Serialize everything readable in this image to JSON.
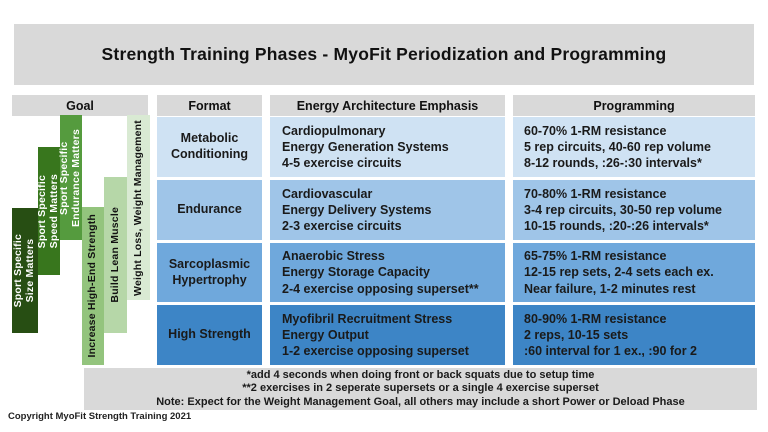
{
  "title": "Strength Training Phases - MyoFit Periodization and Programming",
  "columns": {
    "goal": "Goal",
    "format": "Format",
    "energy": "Energy Architecture Emphasis",
    "programming": "Programming"
  },
  "goals": [
    {
      "label": "Sport Specific\nSize Matters",
      "color": "#274e13",
      "text_color": "#ffffff"
    },
    {
      "label": "Sport Specific\nSpeed Matters",
      "color": "#38761d",
      "text_color": "#ffffff"
    },
    {
      "label": "Sport Specific\nEndurance Matters",
      "color": "#559b3e",
      "text_color": "#ffffff"
    },
    {
      "label": "Increase High-End Strength",
      "color": "#93c47d",
      "text_color": "#111111"
    },
    {
      "label": "Build Lean Muscle",
      "color": "#b6d7a8",
      "text_color": "#111111"
    },
    {
      "label": "Weight Loss, Weight Management",
      "color": "#d9ead3",
      "text_color": "#111111"
    }
  ],
  "rows": [
    {
      "format": "Metabolic Conditioning",
      "energy": [
        "Cardiopulmonary",
        "Energy Generation Systems",
        "4-5 exercise circuits"
      ],
      "programming": [
        "60-70% 1-RM resistance",
        "5 rep circuits, 40-60 rep volume",
        "8-12 rounds, :26-:30 intervals*"
      ],
      "color": "#cfe2f3"
    },
    {
      "format": "Endurance",
      "energy": [
        "Cardiovascular",
        "Energy Delivery Systems",
        "2-3 exercise circuits"
      ],
      "programming": [
        "70-80% 1-RM resistance",
        "3-4 rep circuits, 30-50 rep volume",
        "10-15 rounds, :20-:26 intervals*"
      ],
      "color": "#9fc5e8"
    },
    {
      "format": "Sarcoplasmic Hypertrophy",
      "energy": [
        "Anaerobic Stress",
        "Energy Storage Capacity",
        "2-4 exercise opposing superset**"
      ],
      "programming": [
        "65-75% 1-RM resistance",
        "12-15 rep sets, 2-4 sets each ex.",
        "Near failure, 1-2 minutes rest"
      ],
      "color": "#6fa8dc"
    },
    {
      "format": "High Strength",
      "energy": [
        "Myofibril Recruitment Stress",
        "Energy Output",
        "1-2 exercise opposing superset"
      ],
      "programming": [
        "80-90% 1-RM resistance",
        "2 reps, 10-15 sets",
        ":60 interval for 1 ex., :90 for 2"
      ],
      "color": "#3d85c6"
    }
  ],
  "notes": [
    "*add 4 seconds when doing front or back squats due to setup time",
    "**2 exercises in 2 seperate supersets or a single 4 exercise superset",
    "Note: Expect for the Weight Management Goal, all others may include a short Power or Deload Phase"
  ],
  "copyright": "Copyright MyoFit Strength Training 2021",
  "colors": {
    "header_gray": "#d9d9d9",
    "row1_blue": "#cfe2f3",
    "row2_blue": "#9fc5e8",
    "row3_blue": "#6fa8dc",
    "row4_blue": "#3d85c6"
  }
}
